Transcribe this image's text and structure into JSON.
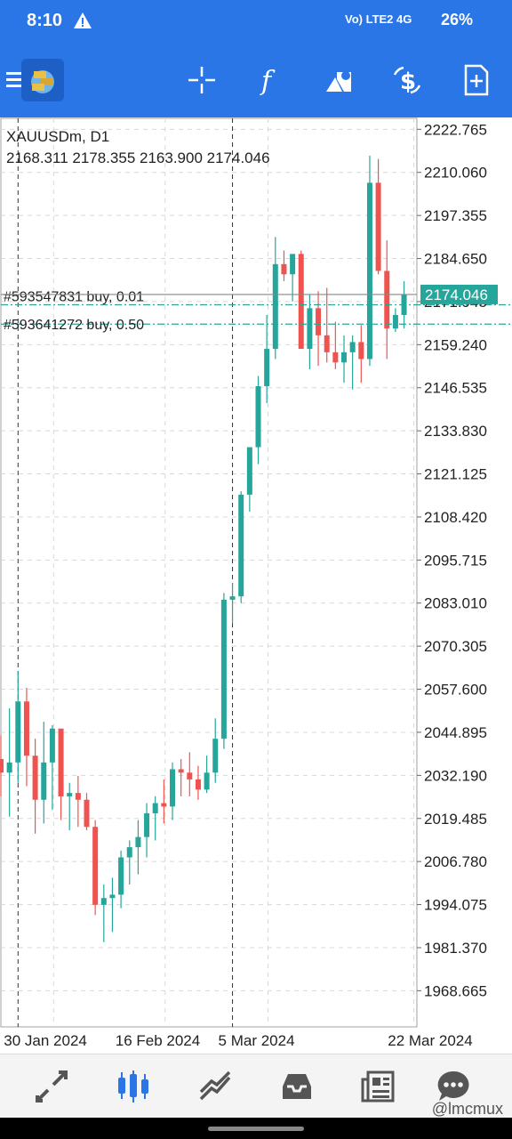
{
  "status_bar": {
    "time": "8:10",
    "network": "Vo) LTE2 4G",
    "battery": "26%"
  },
  "toolbar": {
    "icons": [
      "menu-icon",
      "gold-logo-icon",
      "crosshair-icon",
      "indicators-icon",
      "objects-icon",
      "price-change-icon",
      "new-order-icon"
    ]
  },
  "colors": {
    "bull": "#26a69a",
    "bear": "#ef5350",
    "accent": "#2a76e6",
    "grid": "#d8d8d8",
    "order_line": "#26a69a",
    "current_price_bg": "#26a69a"
  },
  "chart_data": {
    "type": "candlestick",
    "symbol": "XAUUSDm, D1",
    "ohlc_header": "2168.311 2178.355 2163.900 2174.046",
    "current_price": 2174.046,
    "current_price_label": "2174.046",
    "ylim": [
      1958,
      2226
    ],
    "y_ticks": [
      2222.765,
      2210.06,
      2197.355,
      2184.65,
      2171.945,
      2159.24,
      2146.535,
      2133.83,
      2121.125,
      2108.42,
      2095.715,
      2083.01,
      2070.305,
      2057.6,
      2044.895,
      2032.19,
      2019.485,
      2006.78,
      1994.075,
      1981.37,
      1968.665
    ],
    "y_tick_labels": [
      "2222.765",
      "2210.060",
      "2197.355",
      "2184.650",
      "2171.945",
      "2159.240",
      "2146.535",
      "2133.830",
      "2121.125",
      "2108.420",
      "2095.715",
      "2083.010",
      "2070.305",
      "2057.600",
      "2044.895",
      "2032.190",
      "2019.485",
      "2006.780",
      "1994.075",
      "1981.370",
      "1968.665"
    ],
    "x_tick_labels": [
      {
        "label": "30 Jan 2024",
        "index": 2
      },
      {
        "label": "16 Feb 2024",
        "index": 15
      },
      {
        "label": "5 Mar 2024",
        "index": 27
      },
      {
        "label": "22 Mar 2024",
        "index": 44
      }
    ],
    "period_separators": [
      2,
      27
    ],
    "orders": [
      {
        "label": "#593547831 buy, 0.01",
        "price": 2171.0
      },
      {
        "label": "#593641272 buy, 0.50",
        "price": 2165.3
      }
    ],
    "candles": [
      [
        2037,
        2044,
        2026,
        2033
      ],
      [
        2033,
        2052,
        2020,
        2036
      ],
      [
        2036,
        2063,
        2030,
        2054
      ],
      [
        2054,
        2058,
        2029,
        2038
      ],
      [
        2038,
        2043,
        2015,
        2025
      ],
      [
        2025,
        2048,
        2018,
        2036
      ],
      [
        2036,
        2047,
        2022,
        2046
      ],
      [
        2046,
        2045,
        2019,
        2026
      ],
      [
        2026,
        2030,
        2016,
        2027
      ],
      [
        2027,
        2032,
        2017,
        2025
      ],
      [
        2025,
        2027,
        2016,
        2017
      ],
      [
        2017,
        2019,
        1991,
        1994
      ],
      [
        1994,
        2000,
        1983,
        1996
      ],
      [
        1996,
        2002,
        1986,
        1997
      ],
      [
        1997,
        2010,
        1993,
        2008
      ],
      [
        2008,
        2013,
        2000,
        2011
      ],
      [
        2011,
        2019,
        2003,
        2014
      ],
      [
        2014,
        2024,
        2008,
        2021
      ],
      [
        2021,
        2026,
        2013,
        2024
      ],
      [
        2024,
        2031,
        2018,
        2023
      ],
      [
        2023,
        2036,
        2019,
        2034
      ],
      [
        2034,
        2037,
        2026,
        2033
      ],
      [
        2033,
        2039,
        2026,
        2031
      ],
      [
        2031,
        2035,
        2025,
        2028
      ],
      [
        2028,
        2038,
        2027,
        2033
      ],
      [
        2033,
        2049,
        2030,
        2043
      ],
      [
        2043,
        2086,
        2040,
        2084
      ],
      [
        2084,
        2089,
        2077,
        2085
      ],
      [
        2085,
        2116,
        2083,
        2115
      ],
      [
        2115,
        2129,
        2110,
        2129
      ],
      [
        2129,
        2150,
        2124,
        2147
      ],
      [
        2147,
        2168,
        2142,
        2158
      ],
      [
        2158,
        2191,
        2155,
        2183
      ],
      [
        2183,
        2187,
        2178,
        2180
      ],
      [
        2180,
        2185,
        2172,
        2186
      ],
      [
        2186,
        2187,
        2159,
        2158
      ],
      [
        2158,
        2174,
        2152,
        2170
      ],
      [
        2170,
        2175,
        2153,
        2162
      ],
      [
        2162,
        2176,
        2154,
        2157
      ],
      [
        2157,
        2166,
        2152,
        2154
      ],
      [
        2154,
        2162,
        2148,
        2157
      ],
      [
        2157,
        2162,
        2146,
        2160
      ],
      [
        2160,
        2165,
        2148,
        2155
      ],
      [
        2155,
        2215,
        2153,
        2207
      ],
      [
        2207,
        2214,
        2180,
        2181
      ],
      [
        2181,
        2190,
        2155,
        2164
      ],
      [
        2164,
        2170,
        2163,
        2168
      ],
      [
        2168,
        2178,
        2164,
        2174
      ]
    ]
  },
  "bottom_nav": {
    "icons": [
      "quotes-icon",
      "chart-icon",
      "trade-icon",
      "history-icon",
      "news-icon",
      "messages-icon"
    ]
  },
  "watermark": "@lmcmux"
}
